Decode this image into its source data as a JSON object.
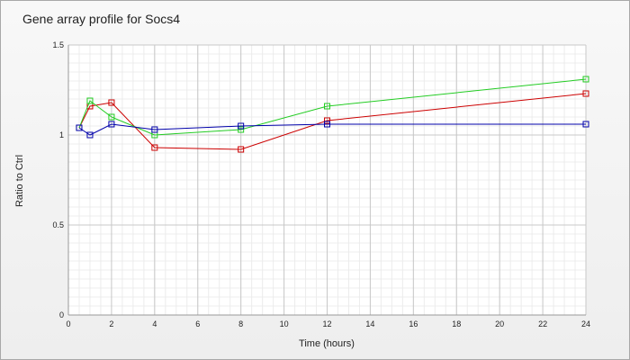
{
  "chart_data": {
    "type": "line",
    "title": "Gene array profile for Socs4",
    "xlabel": "Time (hours)",
    "ylabel": "Ratio to Ctrl",
    "xlim": [
      0,
      24
    ],
    "ylim": [
      0,
      1.5
    ],
    "x_ticks": [
      "0",
      "2",
      "4",
      "6",
      "8",
      "10",
      "12",
      "14",
      "16",
      "18",
      "20",
      "22",
      "24"
    ],
    "y_ticks": [
      "0",
      "0.5",
      "1",
      "1.5"
    ],
    "grid": true,
    "series": [
      {
        "color": "#cc0000",
        "x": [
          0.5,
          1,
          2,
          4,
          8,
          12,
          24
        ],
        "y": [
          1.04,
          1.16,
          1.18,
          0.93,
          0.92,
          1.08,
          1.23
        ]
      },
      {
        "color": "#22cc22",
        "x": [
          0.5,
          1,
          2,
          4,
          8,
          12,
          24
        ],
        "y": [
          1.04,
          1.19,
          1.1,
          1.0,
          1.03,
          1.16,
          1.31
        ]
      },
      {
        "color": "#0000aa",
        "x": [
          0.5,
          1,
          2,
          4,
          8,
          12,
          24
        ],
        "y": [
          1.04,
          1.0,
          1.06,
          1.03,
          1.05,
          1.06,
          1.06
        ]
      }
    ]
  }
}
